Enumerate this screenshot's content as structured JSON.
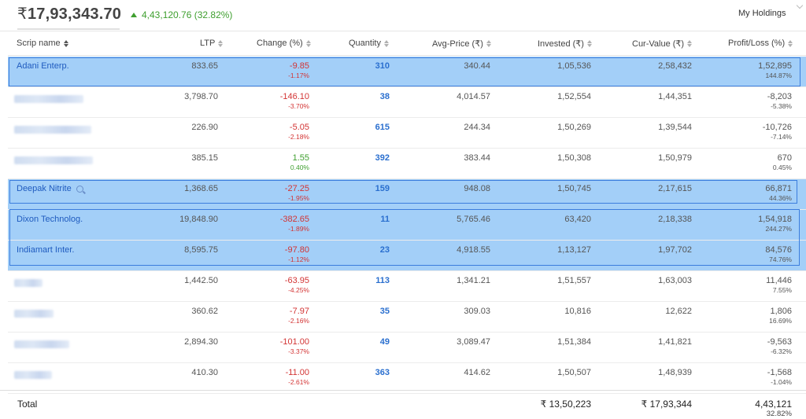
{
  "portfolio": {
    "currency_symbol": "₹",
    "total_value": "17,93,343.70",
    "day_change": "4,43,120.76 (32.82%)",
    "view_select": "My Holdings"
  },
  "columns": [
    {
      "label": "Scrip name"
    },
    {
      "label": "LTP"
    },
    {
      "label": "Change (%)"
    },
    {
      "label": "Quantity"
    },
    {
      "label": "Avg-Price (₹)"
    },
    {
      "label": "Invested (₹)"
    },
    {
      "label": "Cur-Value (₹)"
    },
    {
      "label": "Profit/Loss (%)"
    }
  ],
  "rows": [
    {
      "name": "Adani Enterp.",
      "ltp": "833.65",
      "chg": "-9.85",
      "chg_pct": "-1.17%",
      "qty": "310",
      "avg": "340.44",
      "inv": "1,05,536",
      "cur": "2,58,432",
      "pl": "1,52,895",
      "pl_pct": "144.87%"
    },
    {
      "name": "",
      "ltp": "3,798.70",
      "chg": "-146.10",
      "chg_pct": "-3.70%",
      "qty": "38",
      "avg": "4,014.57",
      "inv": "1,52,554",
      "cur": "1,44,351",
      "pl": "-8,203",
      "pl_pct": "-5.38%"
    },
    {
      "name": "",
      "ltp": "226.90",
      "chg": "-5.05",
      "chg_pct": "-2.18%",
      "qty": "615",
      "avg": "244.34",
      "inv": "1,50,269",
      "cur": "1,39,544",
      "pl": "-10,726",
      "pl_pct": "-7.14%"
    },
    {
      "name": "",
      "ltp": "385.15",
      "chg": "1.55",
      "chg_pct": "0.40%",
      "qty": "392",
      "avg": "383.44",
      "inv": "1,50,308",
      "cur": "1,50,979",
      "pl": "670",
      "pl_pct": "0.45%"
    },
    {
      "name": "Deepak Nitrite",
      "ltp": "1,368.65",
      "chg": "-27.25",
      "chg_pct": "-1.95%",
      "qty": "159",
      "avg": "948.08",
      "inv": "1,50,745",
      "cur": "2,17,615",
      "pl": "66,871",
      "pl_pct": "44.36%"
    },
    {
      "name": "Dixon Technolog.",
      "ltp": "19,848.90",
      "chg": "-382.65",
      "chg_pct": "-1.89%",
      "qty": "11",
      "avg": "5,765.46",
      "inv": "63,420",
      "cur": "2,18,338",
      "pl": "1,54,918",
      "pl_pct": "244.27%"
    },
    {
      "name": "Indiamart Inter.",
      "ltp": "8,595.75",
      "chg": "-97.80",
      "chg_pct": "-1.12%",
      "qty": "23",
      "avg": "4,918.55",
      "inv": "1,13,127",
      "cur": "1,97,702",
      "pl": "84,576",
      "pl_pct": "74.76%"
    },
    {
      "name": "",
      "ltp": "1,442.50",
      "chg": "-63.95",
      "chg_pct": "-4.25%",
      "qty": "113",
      "avg": "1,341.21",
      "inv": "1,51,557",
      "cur": "1,63,003",
      "pl": "11,446",
      "pl_pct": "7.55%"
    },
    {
      "name": "",
      "ltp": "360.62",
      "chg": "-7.97",
      "chg_pct": "-2.16%",
      "qty": "35",
      "avg": "309.03",
      "inv": "10,816",
      "cur": "12,622",
      "pl": "1,806",
      "pl_pct": "16.69%"
    },
    {
      "name": "",
      "ltp": "2,894.30",
      "chg": "-101.00",
      "chg_pct": "-3.37%",
      "qty": "49",
      "avg": "3,089.47",
      "inv": "1,51,384",
      "cur": "1,41,821",
      "pl": "-9,563",
      "pl_pct": "-6.32%"
    },
    {
      "name": "",
      "ltp": "410.30",
      "chg": "-11.00",
      "chg_pct": "-2.61%",
      "qty": "363",
      "avg": "414.62",
      "inv": "1,50,507",
      "cur": "1,48,939",
      "pl": "-1,568",
      "pl_pct": "-1.04%"
    }
  ],
  "footer": {
    "label": "Total",
    "invested": "₹ 13,50,223",
    "current": "₹ 17,93,344",
    "pl": "4,43,121",
    "pl_pct": "32.82%"
  }
}
